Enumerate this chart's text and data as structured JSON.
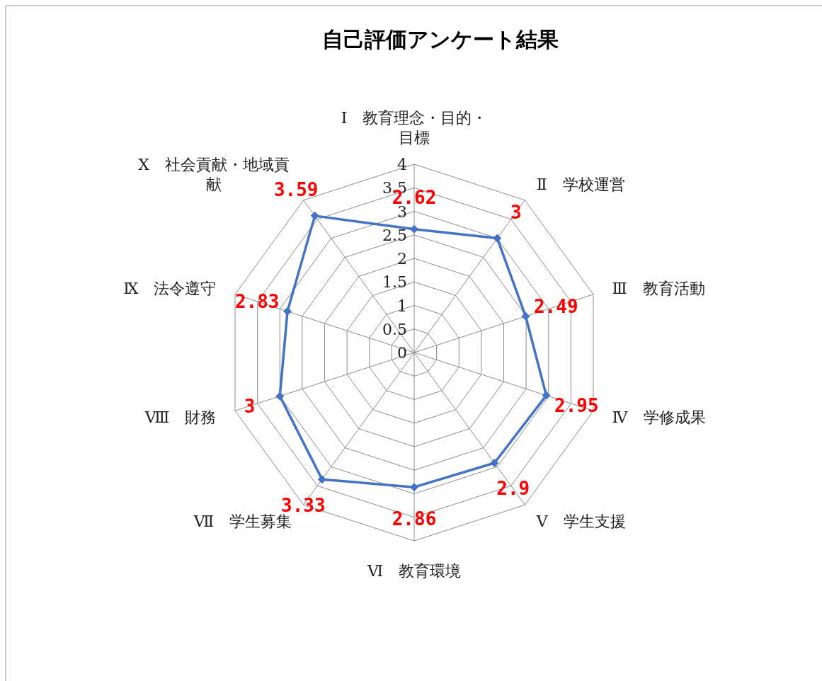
{
  "chart_data": {
    "type": "radar",
    "title": "自己評価アンケート結果",
    "categories": [
      "Ⅰ　教育理念・目的・目標",
      "Ⅱ　学校運営",
      "Ⅲ　教育活動",
      "Ⅳ　学修成果",
      "Ⅴ　学生支援",
      "Ⅵ　教育環境",
      "Ⅶ　学生募集",
      "Ⅷ　財務",
      "Ⅸ　法令遵守",
      "Ⅹ　社会貢献・地域貢献"
    ],
    "series": [
      {
        "color": "#4472c4",
        "values": [
          2.62,
          3,
          2.49,
          2.95,
          2.9,
          2.86,
          3.33,
          3,
          2.83,
          3.59
        ]
      }
    ],
    "ylim": [
      0,
      4
    ],
    "yticks": [
      0,
      0.5,
      1,
      1.5,
      2,
      2.5,
      3,
      3.5,
      4
    ],
    "grid": true,
    "marker": "diamond",
    "line_style": "solid",
    "data_labels": true
  }
}
